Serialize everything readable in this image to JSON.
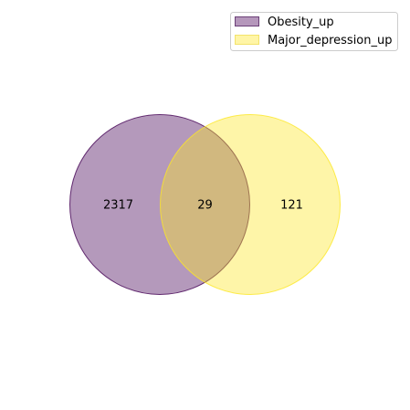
{
  "venn": {
    "sets": [
      {
        "name": "Obesity_up",
        "color": "#440154",
        "fill_opacity": 0.4
      },
      {
        "name": "Major_depression_up",
        "color": "#fde725",
        "fill_opacity": 0.4
      }
    ],
    "regions": {
      "only_a": "2317",
      "intersection": "29",
      "only_b": "121"
    },
    "legend": {
      "position": "top-right",
      "items": [
        {
          "label": "Obesity_up",
          "color": "#b597bb",
          "edge": "#6b3f77"
        },
        {
          "label": "Major_depression_up",
          "color": "#fff5a6",
          "edge": "#f3e36b"
        }
      ]
    }
  }
}
